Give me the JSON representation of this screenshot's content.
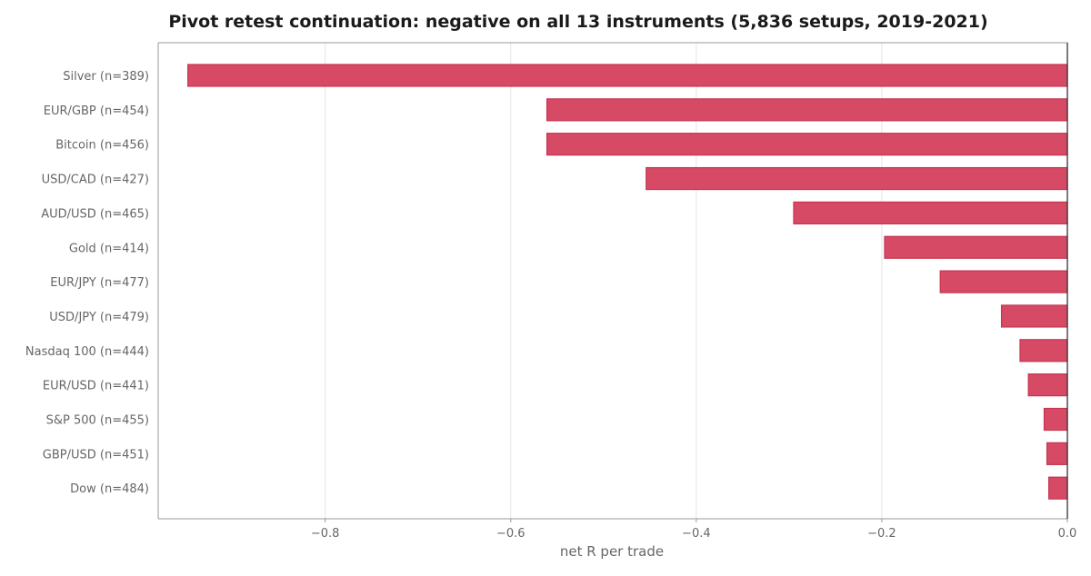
{
  "chart_data": {
    "type": "bar",
    "orientation": "horizontal",
    "title": "Pivot retest continuation: negative on all 13 instruments (5,836 setups, 2019-2021)",
    "xlabel": "net R per trade",
    "ylabel": "",
    "xlim": [
      -0.98,
      0.0
    ],
    "xticks": [
      -0.8,
      -0.6,
      -0.4,
      -0.2,
      0.0
    ],
    "xtick_labels": [
      "−0.8",
      "−0.6",
      "−0.4",
      "−0.2",
      "0.0"
    ],
    "grid": "vertical",
    "legend": "none",
    "colors": {
      "bar_fill": "#d64a66",
      "bar_edge": "#c8344f",
      "grid": "#e5e5e5",
      "axis": "#999999",
      "zero_line": "#333333",
      "tick_text": "#666666",
      "title_text": "#1a1a1a"
    },
    "categories": [
      "Silver  (n=389)",
      "EUR/GBP  (n=454)",
      "Bitcoin  (n=456)",
      "USD/CAD  (n=427)",
      "AUD/USD  (n=465)",
      "Gold  (n=414)",
      "EUR/JPY  (n=477)",
      "USD/JPY  (n=479)",
      "Nasdaq 100  (n=444)",
      "EUR/USD  (n=441)",
      "S&P 500  (n=455)",
      "GBP/USD  (n=451)",
      "Dow  (n=484)"
    ],
    "values": [
      -0.948,
      -0.561,
      -0.561,
      -0.454,
      -0.295,
      -0.197,
      -0.137,
      -0.071,
      -0.051,
      -0.042,
      -0.025,
      -0.022,
      -0.02
    ]
  }
}
